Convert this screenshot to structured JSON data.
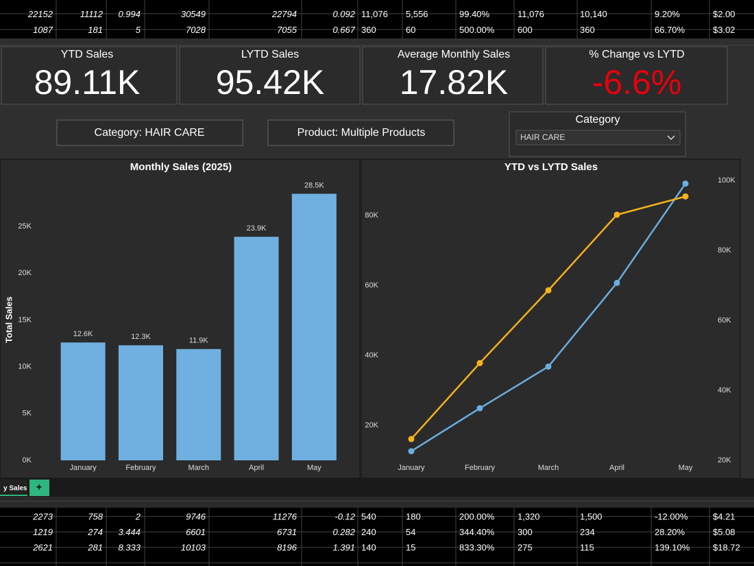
{
  "top_table": {
    "rows": [
      [
        "22152",
        "11112",
        "0.994",
        "30549",
        "22794",
        "0.092",
        "11,076",
        "5,556",
        "99.40%",
        "11,076",
        "10,140",
        "9.20%",
        "$2.00"
      ],
      [
        "1087",
        "181",
        "5",
        "7028",
        "7055",
        "0.667",
        "360",
        "60",
        "500.00%",
        "600",
        "360",
        "66.70%",
        "$3.02"
      ]
    ]
  },
  "kpis": [
    {
      "label": "YTD Sales",
      "value": "89.11K"
    },
    {
      "label": "LYTD Sales",
      "value": "95.42K"
    },
    {
      "label": "Average Monthly Sales",
      "value": "17.82K"
    },
    {
      "label": "% Change vs LYTD",
      "value": "-6.6%"
    }
  ],
  "filters": {
    "category_button": "Category: HAIR CARE",
    "product_button": "Product: Multiple Products"
  },
  "slicer": {
    "title": "Category",
    "selected": "HAIR CARE"
  },
  "chart_data": [
    {
      "type": "bar",
      "title": "Monthly Sales (2025)",
      "y_label": "Total Sales",
      "categories": [
        "January",
        "February",
        "March",
        "April",
        "May"
      ],
      "values": [
        12600,
        12300,
        11900,
        23900,
        28500
      ],
      "value_labels": [
        "12.6K",
        "12.3K",
        "11.9K",
        "23.9K",
        "28.5K"
      ],
      "color": "#6fb0e0",
      "ylim": [
        0,
        30000
      ],
      "yticks": [
        {
          "value": 0,
          "label": "0K"
        },
        {
          "value": 5000,
          "label": "5K"
        },
        {
          "value": 10000,
          "label": "10K"
        },
        {
          "value": 15000,
          "label": "15K"
        },
        {
          "value": 20000,
          "label": "20K"
        },
        {
          "value": 25000,
          "label": "25K"
        }
      ]
    },
    {
      "type": "line",
      "title": "YTD vs LYTD Sales",
      "categories": [
        "January",
        "February",
        "March",
        "April",
        "May"
      ],
      "series": [
        {
          "color": "#6aaee0",
          "values": [
            12600,
            24900,
            36800,
            60700,
            89100
          ]
        },
        {
          "color": "#f5b21b",
          "axis": "y2",
          "values": [
            26100,
            47800,
            68600,
            90200,
            95420
          ]
        }
      ],
      "ylim": [
        10000,
        90000
      ],
      "yticks": [
        {
          "value": 20000,
          "label": "20K"
        },
        {
          "value": 40000,
          "label": "40K"
        },
        {
          "value": 60000,
          "label": "60K"
        },
        {
          "value": 80000,
          "label": "80K"
        }
      ],
      "y2lim": [
        20000,
        100000
      ],
      "y2ticks": [
        {
          "value": 20000,
          "label": "20K"
        },
        {
          "value": 40000,
          "label": "40K"
        },
        {
          "value": 60000,
          "label": "60K"
        },
        {
          "value": 80000,
          "label": "80K"
        },
        {
          "value": 100000,
          "label": "100K"
        }
      ]
    }
  ],
  "sheet_tabs": {
    "active": "y Sales",
    "add": "+"
  },
  "bottom_table": {
    "rows": [
      [
        "2273",
        "758",
        "2",
        "9746",
        "11276",
        "-0.12",
        "540",
        "180",
        "200.00%",
        "1,320",
        "1,500",
        "-12.00%",
        "$4.21"
      ],
      [
        "1219",
        "274",
        "3.444",
        "6601",
        "6731",
        "0.282",
        "240",
        "54",
        "344.40%",
        "300",
        "234",
        "28.20%",
        "$5.08"
      ],
      [
        "2621",
        "281",
        "8.333",
        "10103",
        "8196",
        "1.391",
        "140",
        "15",
        "833.30%",
        "275",
        "115",
        "139.10%",
        "$18.72"
      ]
    ]
  }
}
